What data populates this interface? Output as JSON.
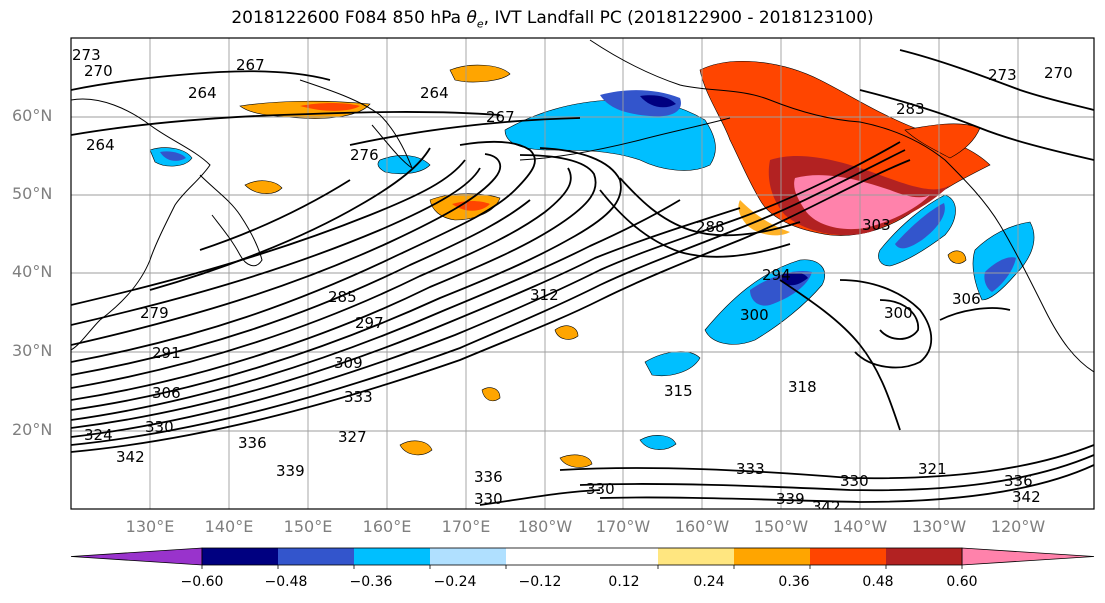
{
  "title": {
    "prefix": "2018122600 F084 850 hPa ",
    "symbol": "θ",
    "subscript": "e",
    "suffix": ", IVT Landfall PC (2018122900 - 2018123100)"
  },
  "map": {
    "latitude_labels": [
      "60°N",
      "50°N",
      "40°N",
      "30°N",
      "20°N"
    ],
    "longitude_labels": [
      "130°E",
      "140°E",
      "150°E",
      "160°E",
      "170°E",
      "180°W",
      "170°W",
      "160°W",
      "150°W",
      "140°W",
      "130°W",
      "120°W"
    ],
    "contour_labels": [
      "273",
      "270",
      "264",
      "267",
      "264",
      "267",
      "264",
      "276",
      "285",
      "279",
      "291",
      "306",
      "324",
      "330",
      "342",
      "336",
      "339",
      "297",
      "309",
      "333",
      "327",
      "315",
      "312",
      "288",
      "300",
      "294",
      "303",
      "300",
      "306",
      "318",
      "333",
      "330",
      "339",
      "342",
      "321",
      "336",
      "342",
      "330",
      "283",
      "273",
      "270",
      "336",
      "330"
    ],
    "colors": {
      "coast": "#000000",
      "grid": "#9e9e9e",
      "contour": "#000000"
    }
  },
  "colorbar": {
    "levels": [
      -0.72,
      -0.6,
      -0.48,
      -0.36,
      -0.24,
      -0.12,
      0.12,
      0.24,
      0.36,
      0.48,
      0.6,
      0.72
    ],
    "colors": [
      "#9933cc",
      "#000080",
      "#3355cc",
      "#00bfff",
      "#b0e0ff",
      "#ffffff",
      "#ffe680",
      "#ffa500",
      "#ff4500",
      "#b22222",
      "#ff82ab"
    ],
    "tick_labels": [
      "−0.60",
      "−0.48",
      "−0.36",
      "−0.24",
      "−0.12",
      "0.12",
      "0.24",
      "0.36",
      "0.48",
      "0.60"
    ]
  }
}
